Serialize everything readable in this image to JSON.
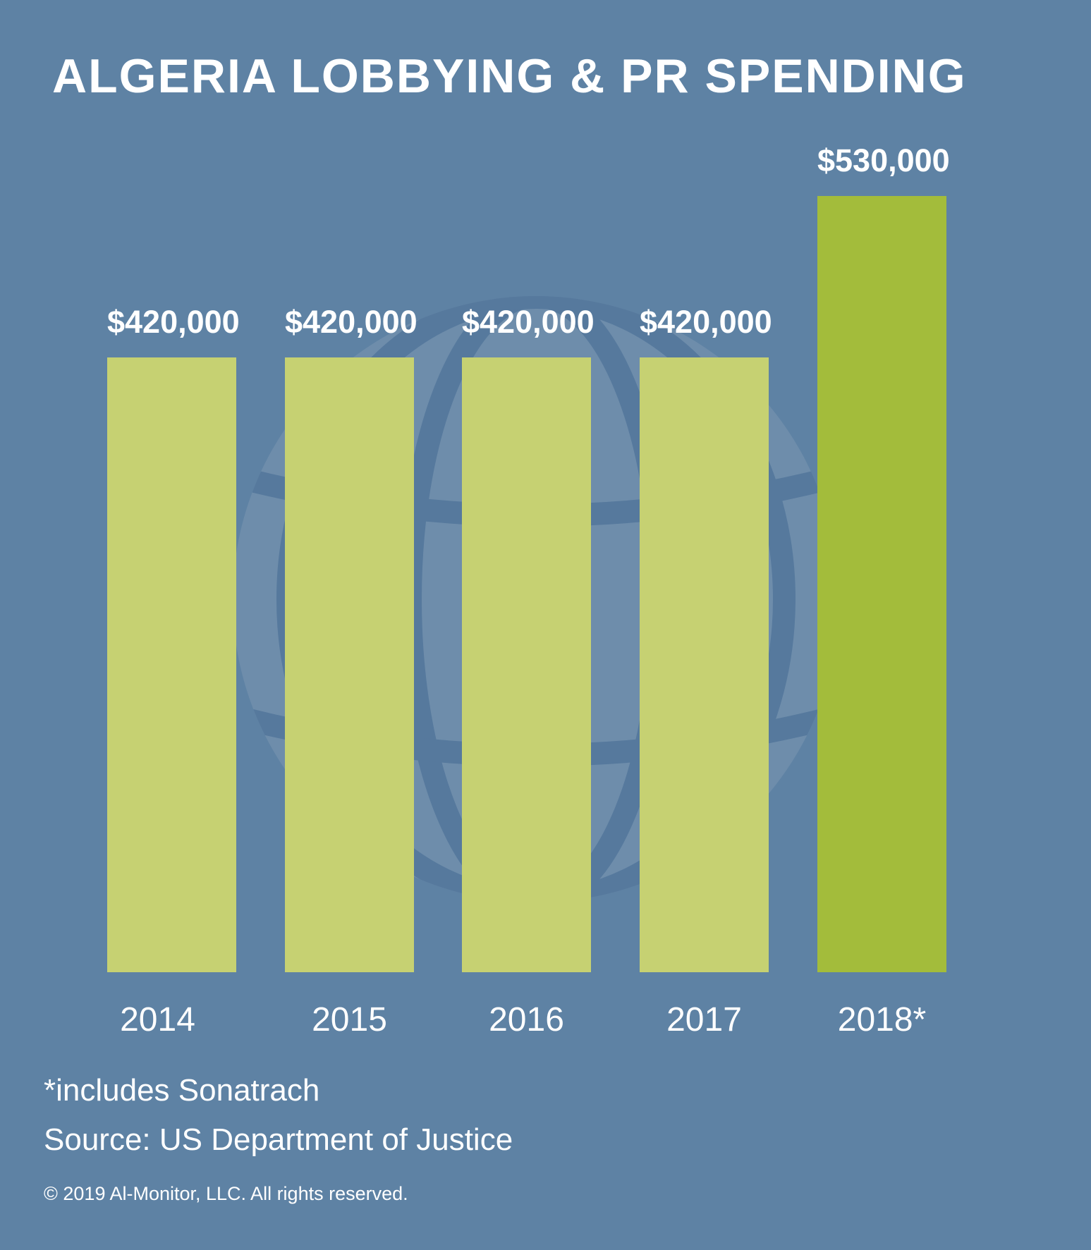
{
  "title": "ALGERIA LOBBYING & PR SPENDING",
  "chart_data": {
    "type": "bar",
    "categories": [
      "2014",
      "2015",
      "2016",
      "2017",
      "2018*"
    ],
    "values": [
      420000,
      420000,
      420000,
      420000,
      530000
    ],
    "value_labels": [
      "$420,000",
      "$420,000",
      "$420,000",
      "$420,000",
      "$530,000"
    ],
    "series_name": "Algeria lobbying & PR spending (USD)",
    "title": "ALGERIA LOBBYING & PR SPENDING",
    "xlabel": "",
    "ylabel": "",
    "ylim": [
      0,
      530000
    ],
    "grid": false,
    "legend": false,
    "highlight_index": 4,
    "bar_colors": [
      "#c6d172",
      "#c6d172",
      "#c6d172",
      "#c6d172",
      "#a3bc3b"
    ]
  },
  "colors": {
    "background": "#5e82a4",
    "bar": "#c6d172",
    "bar_highlight": "#a3bc3b",
    "text": "#ffffff",
    "watermark_fill": "#6e8dab",
    "watermark_line": "#56799d"
  },
  "watermark_icon": "globe-icon",
  "footnote": "*includes Sonatrach",
  "source": "Source: US Department of Justice",
  "copyright": "© 2019 Al-Monitor, LLC. All rights reserved."
}
